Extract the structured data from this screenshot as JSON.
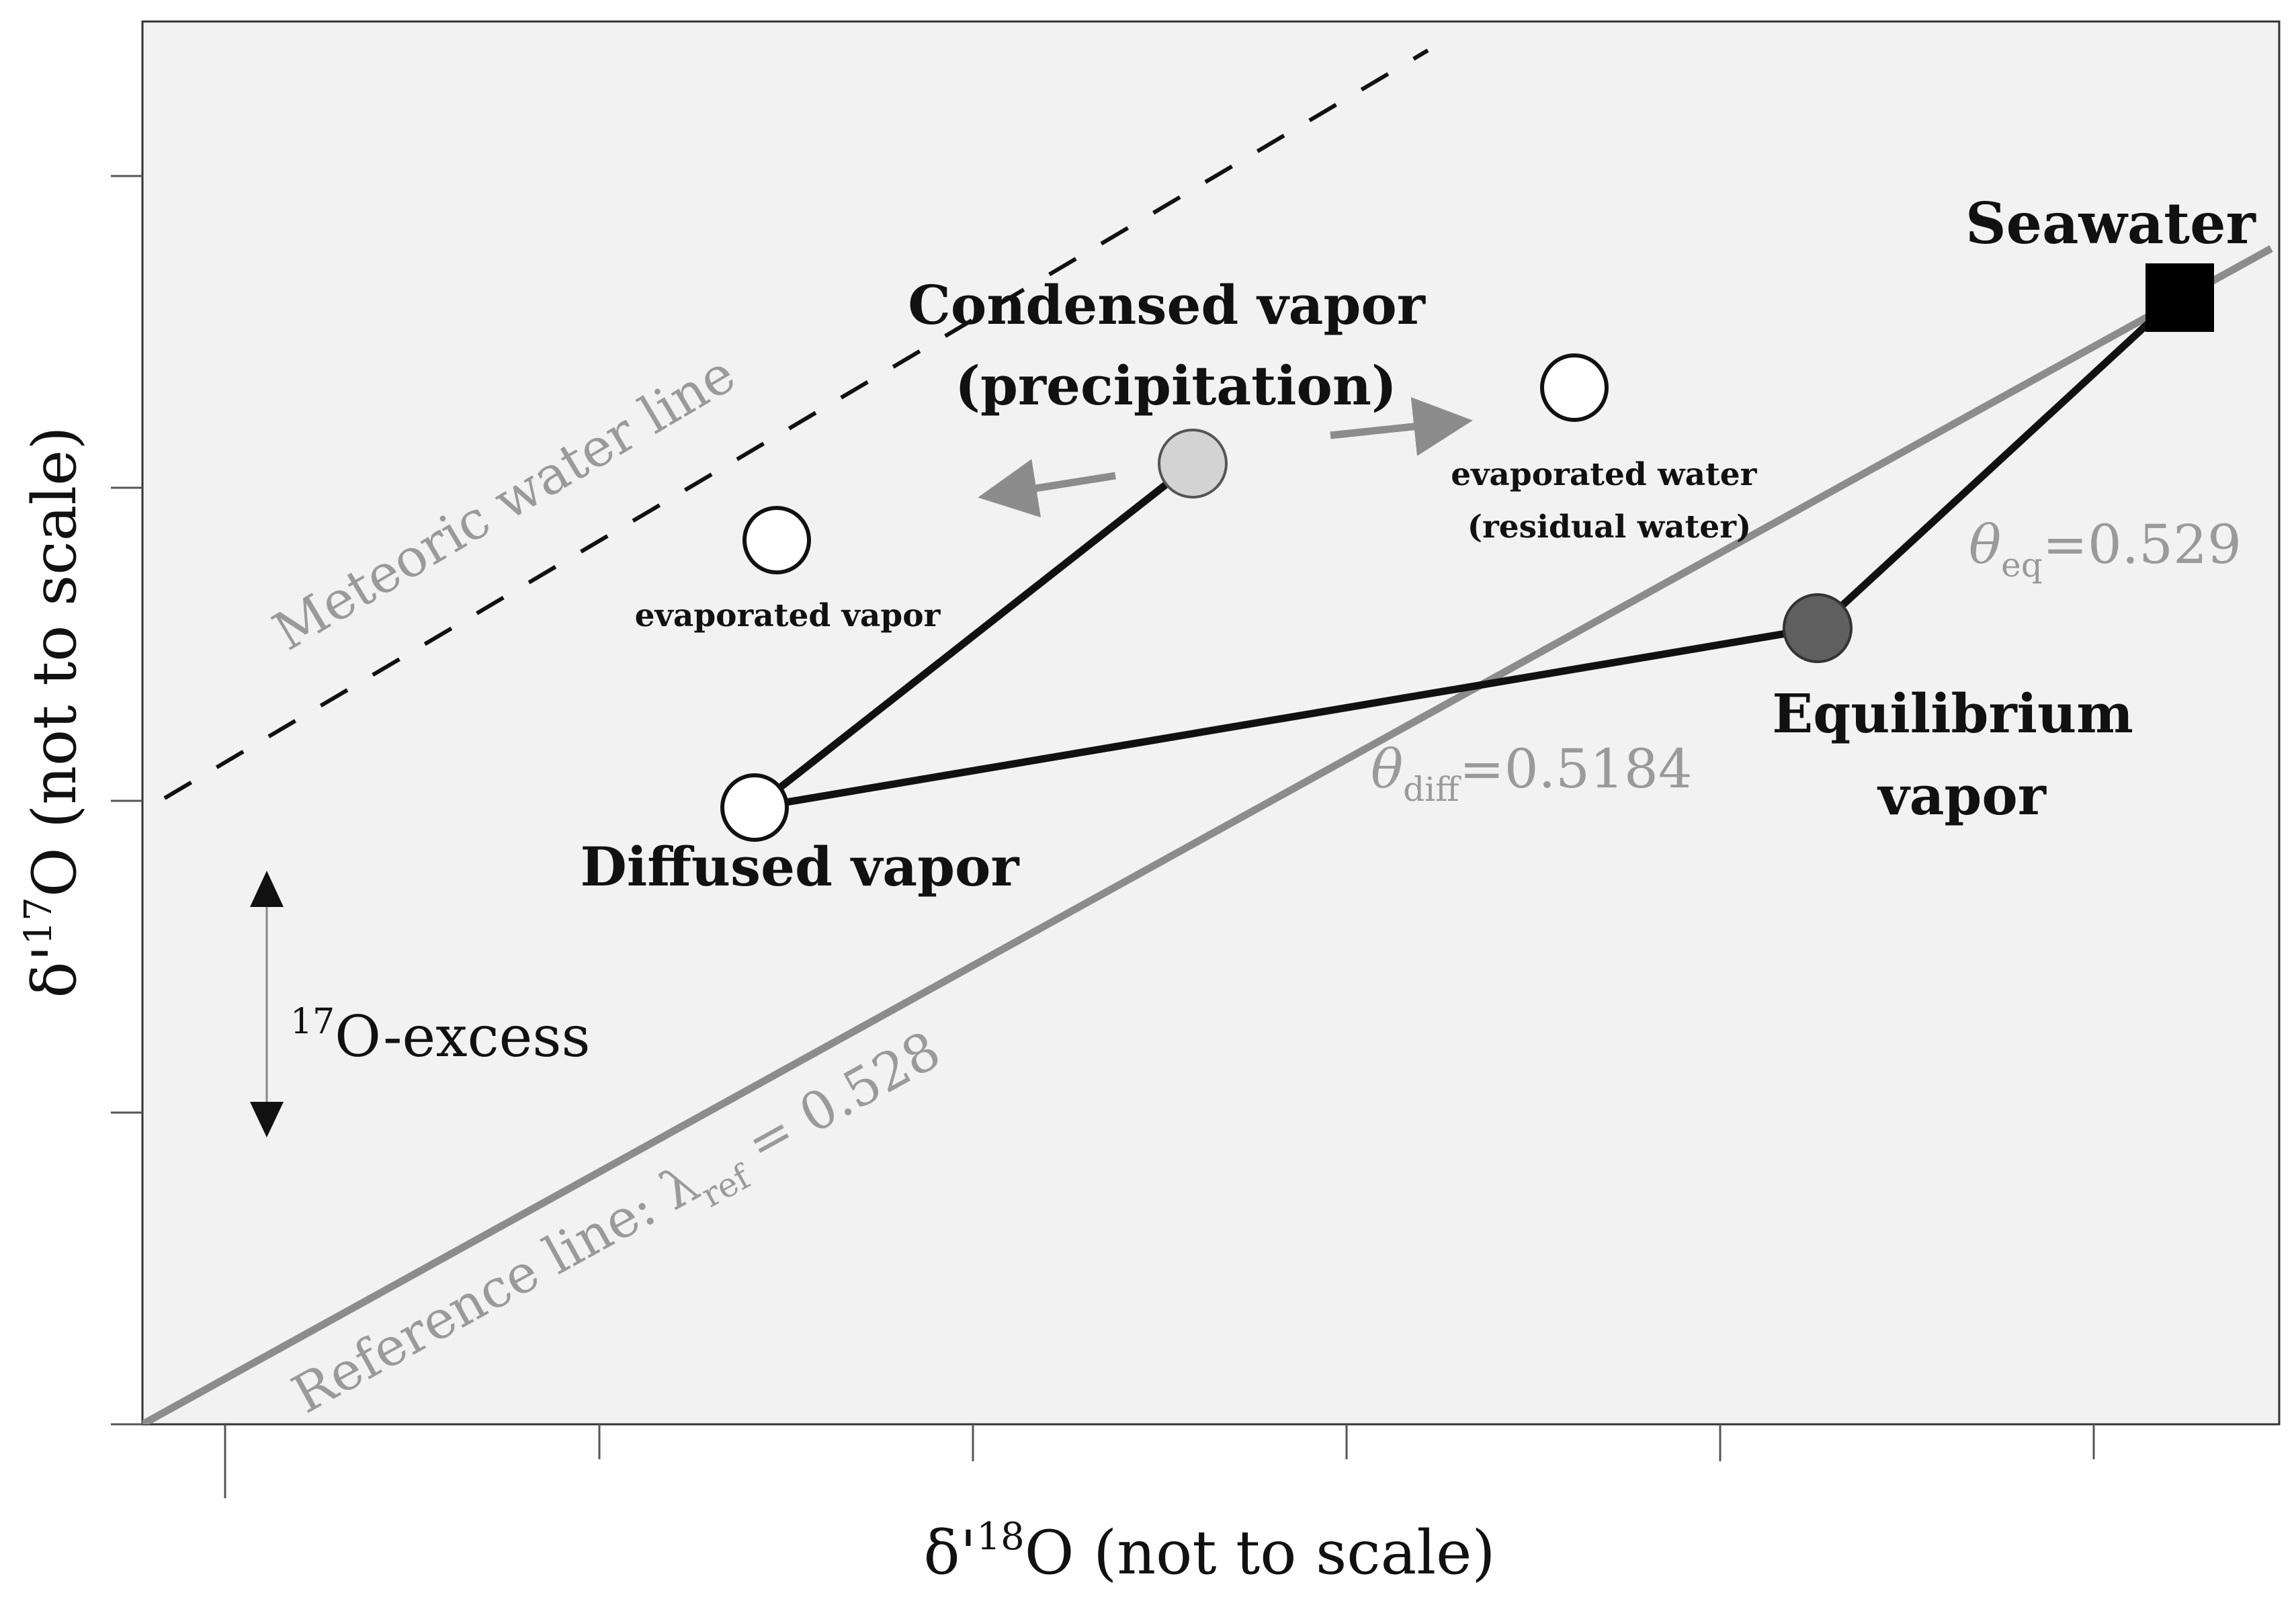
{
  "axes": {
    "x_label_prefix": "δ'",
    "x_label_sup": "18",
    "x_label_suffix": "O (not to scale)",
    "y_label_prefix": "δ'",
    "y_label_sup": "17",
    "y_label_suffix": "O (not to scale)"
  },
  "lines": {
    "meteoric_label": "Meteoric water line",
    "reference_prefix": "Reference line: λ",
    "reference_sub": "ref",
    "reference_suffix": " = 0.528"
  },
  "points": {
    "seawater": "Seawater",
    "condensed_line1": "Condensed vapor",
    "condensed_line2": "(precipitation)",
    "evaporated_water_line1": "evaporated water",
    "evaporated_water_line2": "(residual water)",
    "evaporated_vapor": "evaporated vapor",
    "diffused_vapor": "Diffused vapor",
    "equilibrium_line1": "Equilibrium",
    "equilibrium_line2": "vapor"
  },
  "thetas": {
    "eq_symbol": "θ",
    "eq_sub": "eq",
    "eq_value": "=0.529",
    "diff_symbol": "θ",
    "diff_sub": "diff",
    "diff_value": "=0.5184"
  },
  "excess": {
    "sup": "17",
    "label": "O-excess"
  },
  "colors": {
    "panel_bg": "#f2f2f2",
    "reference_line": "#8c8c8c",
    "label_gray": "#9a9a9a",
    "condensed_fill": "#d3d3d3",
    "equilibrium_fill": "#5f5f5f"
  }
}
